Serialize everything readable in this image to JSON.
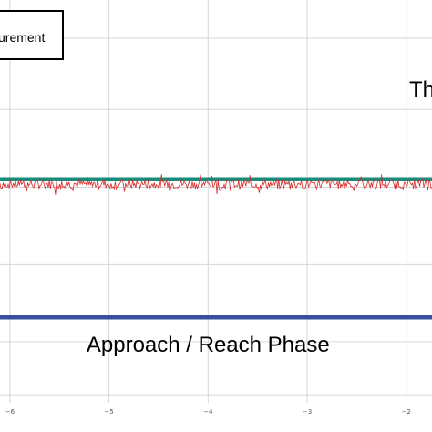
{
  "chart_data": {
    "type": "line",
    "title": "",
    "xlabel": "",
    "ylabel": "",
    "xlim": [
      -6.1,
      -1.74
    ],
    "ylim": [
      0,
      1
    ],
    "xticks": [
      {
        "value": -6,
        "label": "−6"
      },
      {
        "value": -5,
        "label": "−5"
      },
      {
        "value": -4,
        "label": "−4"
      },
      {
        "value": -3,
        "label": "−3"
      },
      {
        "value": -2,
        "label": "−2"
      }
    ],
    "ygrid": [
      0.02,
      0.152,
      0.343,
      0.535,
      0.728,
      0.905
    ],
    "grid": true,
    "legend": {
      "text": "urement",
      "placement": "top-left"
    },
    "series": [
      {
        "color": "#d62a2a",
        "kind": "noisy",
        "seed": 7,
        "x": [
          -6.1,
          -1.74
        ],
        "mean": 0.543,
        "amplitude": 0.012
      },
      {
        "color": "#1a8a7a",
        "kind": "constant",
        "x": [
          -6.1,
          -1.74
        ],
        "values": [
          0.555,
          0.555
        ]
      },
      {
        "color": "#3a4f9c",
        "kind": "constant",
        "x": [
          -6.1,
          -1.74
        ],
        "values": [
          0.212,
          0.212
        ]
      }
    ],
    "annotations": [
      {
        "text": "Th",
        "x": -1.97,
        "y": 0.76
      },
      {
        "text": "Approach / Reach Phase",
        "x": -4.0,
        "y": 0.127
      }
    ]
  }
}
